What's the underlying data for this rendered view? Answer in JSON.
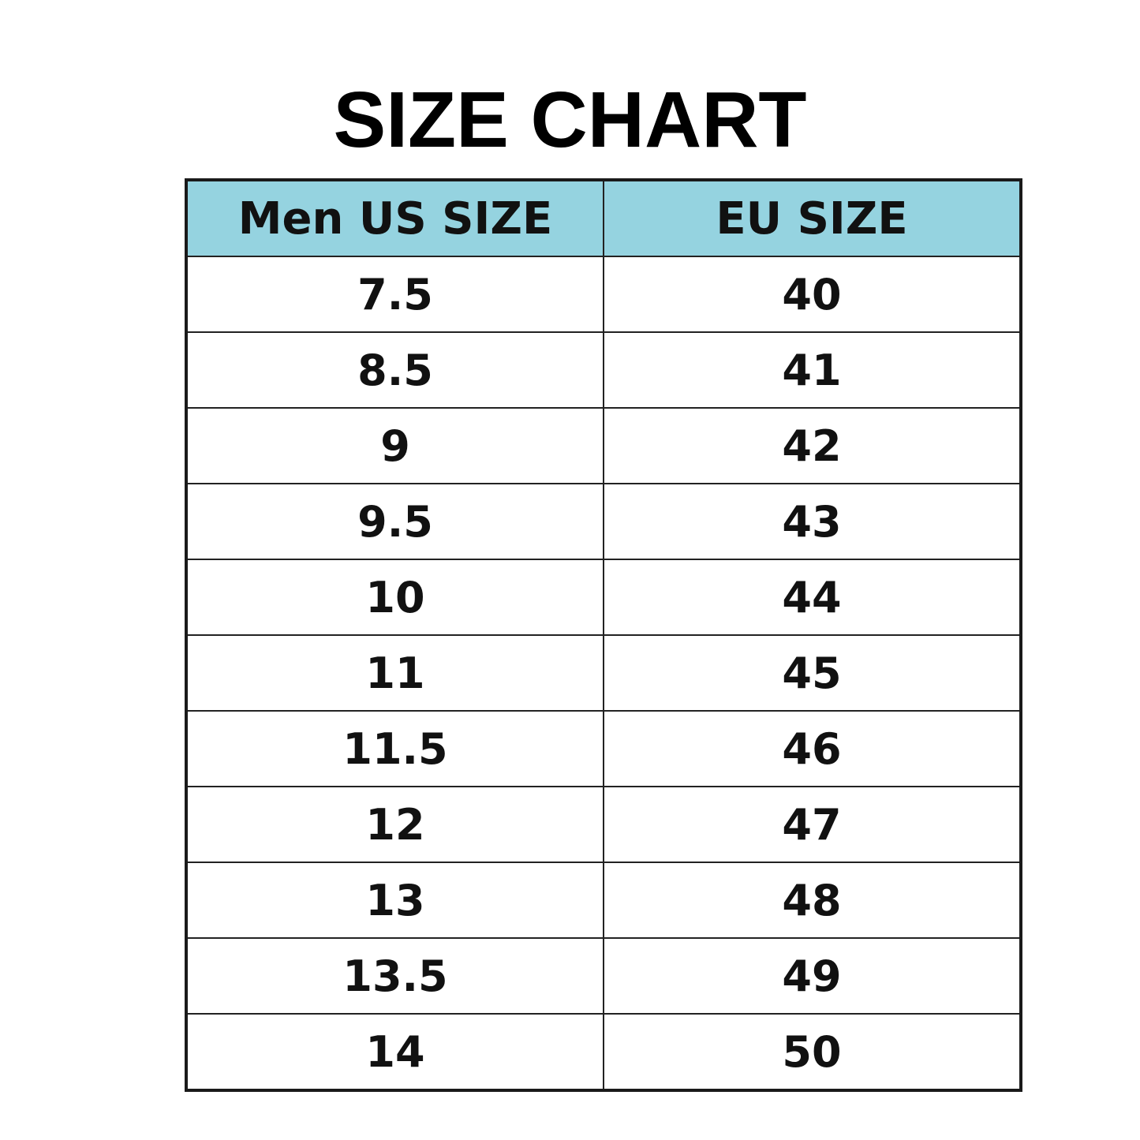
{
  "header": {
    "title": "SIZE CHART"
  },
  "table": {
    "columns": [
      "Men US SIZE",
      "EU SIZE"
    ],
    "rows": [
      [
        "7.5",
        "40"
      ],
      [
        "8.5",
        "41"
      ],
      [
        "9",
        "42"
      ],
      [
        "9.5",
        "43"
      ],
      [
        "10",
        "44"
      ],
      [
        "11",
        "45"
      ],
      [
        "11.5",
        "46"
      ],
      [
        "12",
        "47"
      ],
      [
        "13",
        "48"
      ],
      [
        "13.5",
        "49"
      ],
      [
        "14",
        "50"
      ]
    ]
  }
}
